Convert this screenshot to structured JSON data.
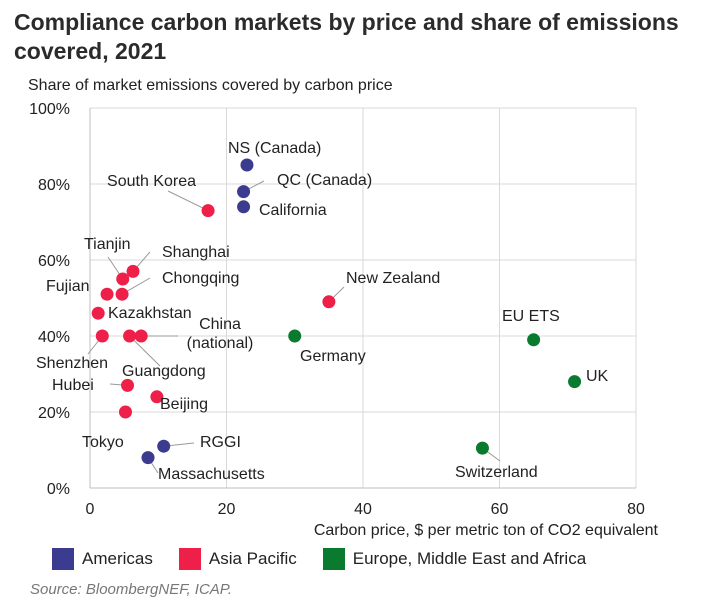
{
  "title": "Compliance carbon markets by price and share of emissions covered, 2021",
  "source": "Source: BloombergNEF, ICAP.",
  "colors": {
    "americas": "#3b3b8f",
    "asia_pacific": "#ee1f48",
    "europe": "#0a7a2f",
    "grid": "#d9d9d9",
    "leader": "#999999",
    "text": "#222222"
  },
  "legend": [
    {
      "key": "americas",
      "label": "Americas"
    },
    {
      "key": "asia_pacific",
      "label": "Asia Pacific"
    },
    {
      "key": "europe",
      "label": "Europe, Middle East and Africa"
    }
  ],
  "chart_data": {
    "type": "scatter",
    "title": "Compliance carbon markets by price and share of emissions covered, 2021",
    "xlabel": "Carbon price, $ per metric ton of CO2 equivalent",
    "ylabel": "Share of market emissions covered by carbon price",
    "xlim": [
      0,
      80
    ],
    "ylim": [
      0,
      100
    ],
    "xticks": [
      0,
      20,
      40,
      60,
      80
    ],
    "yticks": [
      0,
      20,
      40,
      60,
      80,
      100
    ],
    "xtick_labels": [
      "0",
      "20",
      "40",
      "60",
      "80"
    ],
    "ytick_labels": [
      "0%",
      "20%",
      "40%",
      "60%",
      "80%",
      "100%"
    ],
    "grid": true,
    "legend_position": "bottom",
    "series": [
      {
        "name": "Americas",
        "key": "americas",
        "points": [
          {
            "label": "NS (Canada)",
            "x": 23.0,
            "y": 85
          },
          {
            "label": "QC (Canada)",
            "x": 22.5,
            "y": 78
          },
          {
            "label": "California",
            "x": 22.5,
            "y": 74
          },
          {
            "label": "RGGI",
            "x": 10.8,
            "y": 11
          },
          {
            "label": "Massachusetts",
            "x": 8.5,
            "y": 8
          }
        ]
      },
      {
        "name": "Asia Pacific",
        "key": "asia_pacific",
        "points": [
          {
            "label": "South Korea",
            "x": 17.3,
            "y": 73
          },
          {
            "label": "Tianjin",
            "x": 4.8,
            "y": 55
          },
          {
            "label": "Shanghai",
            "x": 6.3,
            "y": 57
          },
          {
            "label": "Fujian",
            "x": 2.5,
            "y": 51
          },
          {
            "label": "Chongqing",
            "x": 4.7,
            "y": 51
          },
          {
            "label": "New Zealand",
            "x": 35.0,
            "y": 49
          },
          {
            "label": "Kazakhstan",
            "x": 1.2,
            "y": 46
          },
          {
            "label": "Shenzhen",
            "x": 1.8,
            "y": 40
          },
          {
            "label": "Guangdong",
            "x": 5.8,
            "y": 40
          },
          {
            "label": "China (national)",
            "x": 7.5,
            "y": 40
          },
          {
            "label": "Hubei",
            "x": 5.5,
            "y": 27
          },
          {
            "label": "Beijing",
            "x": 9.8,
            "y": 24
          },
          {
            "label": "Tokyo",
            "x": 5.2,
            "y": 20
          }
        ]
      },
      {
        "name": "Europe, Middle East and Africa",
        "key": "europe",
        "points": [
          {
            "label": "Germany",
            "x": 30.0,
            "y": 40
          },
          {
            "label": "EU ETS",
            "x": 65.0,
            "y": 39
          },
          {
            "label": "UK",
            "x": 71.0,
            "y": 28
          },
          {
            "label": "Switzerland",
            "x": 57.5,
            "y": 10.5
          }
        ]
      }
    ]
  }
}
